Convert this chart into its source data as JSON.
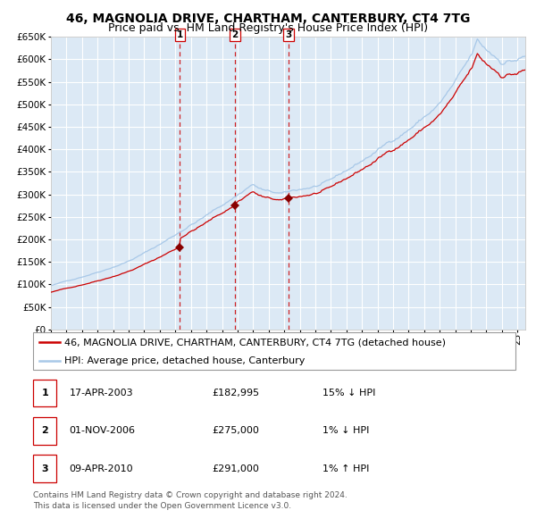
{
  "title": "46, MAGNOLIA DRIVE, CHARTHAM, CANTERBURY, CT4 7TG",
  "subtitle": "Price paid vs. HM Land Registry's House Price Index (HPI)",
  "background_color": "#dce9f5",
  "plot_bg_color": "#dce9f5",
  "grid_color": "#ffffff",
  "hpi_color": "#a8c8e8",
  "price_color": "#cc0000",
  "marker_color": "#880000",
  "dashed_color": "#cc0000",
  "ylim": [
    0,
    650000
  ],
  "yticks": [
    0,
    50000,
    100000,
    150000,
    200000,
    250000,
    300000,
    350000,
    400000,
    450000,
    500000,
    550000,
    600000,
    650000
  ],
  "xlim_start": 1995.0,
  "xlim_end": 2025.5,
  "purchases": [
    {
      "date_num": 2003.29,
      "price": 182995,
      "label": "1"
    },
    {
      "date_num": 2006.83,
      "price": 275000,
      "label": "2"
    },
    {
      "date_num": 2010.27,
      "price": 291000,
      "label": "3"
    }
  ],
  "legend_entries": [
    {
      "label": "46, MAGNOLIA DRIVE, CHARTHAM, CANTERBURY, CT4 7TG (detached house)",
      "color": "#cc0000"
    },
    {
      "label": "HPI: Average price, detached house, Canterbury",
      "color": "#a8c8e8"
    }
  ],
  "table_rows": [
    {
      "num": "1",
      "date": "17-APR-2003",
      "price": "£182,995",
      "hpi": "15% ↓ HPI"
    },
    {
      "num": "2",
      "date": "01-NOV-2006",
      "price": "£275,000",
      "hpi": "1% ↓ HPI"
    },
    {
      "num": "3",
      "date": "09-APR-2010",
      "price": "£291,000",
      "hpi": "1% ↑ HPI"
    }
  ],
  "footer": "Contains HM Land Registry data © Crown copyright and database right 2024.\nThis data is licensed under the Open Government Licence v3.0.",
  "title_fontsize": 10,
  "subtitle_fontsize": 9,
  "tick_fontsize": 7.5,
  "legend_fontsize": 8,
  "table_fontsize": 8,
  "footer_fontsize": 6.5
}
